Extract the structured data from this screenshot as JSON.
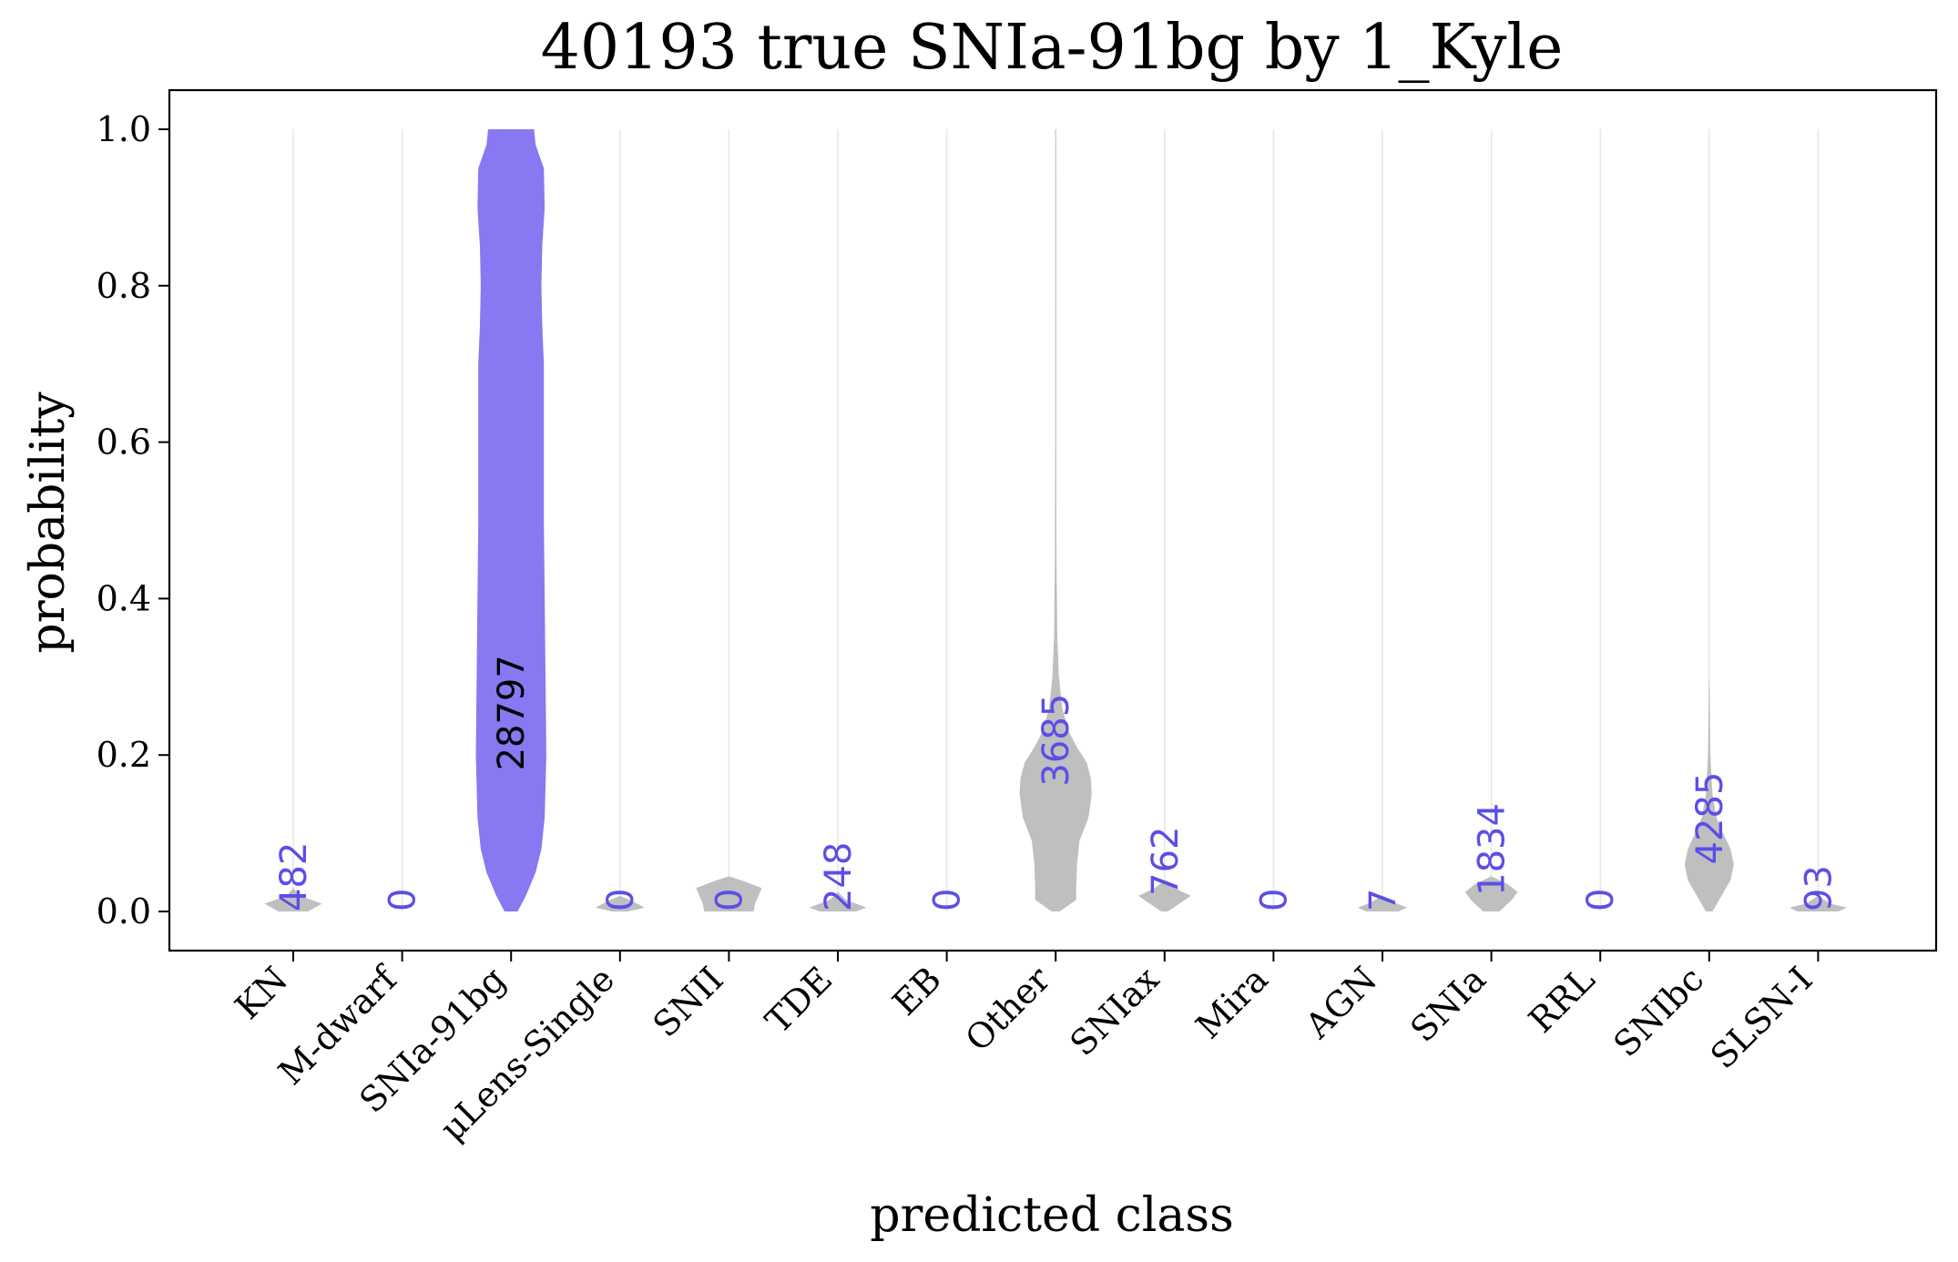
{
  "chart_data": {
    "type": "violin",
    "title": "40193 true SNIa-91bg by 1_Kyle",
    "xlabel": "predicted class",
    "ylabel": "probability",
    "ylim": [
      -0.05,
      1.05
    ],
    "yticks": [
      "0.0",
      "0.2",
      "0.4",
      "0.6",
      "0.8",
      "1.0"
    ],
    "grid": "vertical",
    "highlight_color": "#8878f2",
    "default_color": "#bfbfbf",
    "count_color_default": "#5b4ee8",
    "count_color_highlight": "#000000",
    "true_class": "SNIa-91bg",
    "categories": [
      {
        "name": "KN",
        "count": "482",
        "label_y": 0.0,
        "violin": [
          [
            0.0,
            0.18
          ],
          [
            0.01,
            0.35
          ],
          [
            0.02,
            0.08
          ],
          [
            0.03,
            0.0
          ]
        ]
      },
      {
        "name": "M-dwarf",
        "count": "0",
        "label_y": 0.0,
        "violin": []
      },
      {
        "name": "SNIa-91bg",
        "count": "28797",
        "label_y": 0.18,
        "violin": [
          [
            0.0,
            0.08
          ],
          [
            0.02,
            0.18
          ],
          [
            0.05,
            0.3
          ],
          [
            0.08,
            0.37
          ],
          [
            0.12,
            0.41
          ],
          [
            0.2,
            0.43
          ],
          [
            0.3,
            0.42
          ],
          [
            0.4,
            0.41
          ],
          [
            0.5,
            0.4
          ],
          [
            0.6,
            0.4
          ],
          [
            0.7,
            0.4
          ],
          [
            0.75,
            0.38
          ],
          [
            0.8,
            0.37
          ],
          [
            0.85,
            0.38
          ],
          [
            0.9,
            0.41
          ],
          [
            0.95,
            0.4
          ],
          [
            0.98,
            0.3
          ],
          [
            1.0,
            0.28
          ]
        ]
      },
      {
        "name": "μLens-Single",
        "count": "0",
        "label_y": 0.0,
        "violin": [
          [
            0.0,
            0.1
          ],
          [
            0.005,
            0.3
          ],
          [
            0.015,
            0.12
          ],
          [
            0.02,
            0.0
          ]
        ]
      },
      {
        "name": "SNII",
        "count": "0",
        "label_y": 0.0,
        "violin": [
          [
            0.0,
            0.3
          ],
          [
            0.01,
            0.32
          ],
          [
            0.02,
            0.36
          ],
          [
            0.03,
            0.4
          ],
          [
            0.04,
            0.15
          ],
          [
            0.045,
            0.0
          ]
        ]
      },
      {
        "name": "TDE",
        "count": "248",
        "label_y": 0.0,
        "violin": [
          [
            0.0,
            0.22
          ],
          [
            0.005,
            0.35
          ],
          [
            0.015,
            0.1
          ],
          [
            0.025,
            0.0
          ]
        ]
      },
      {
        "name": "EB",
        "count": "0",
        "label_y": 0.0,
        "violin": []
      },
      {
        "name": "Other",
        "count": "3685",
        "label_y": 0.16,
        "violin": [
          [
            0.0,
            0.05
          ],
          [
            0.015,
            0.25
          ],
          [
            0.03,
            0.25
          ],
          [
            0.06,
            0.26
          ],
          [
            0.09,
            0.29
          ],
          [
            0.12,
            0.4
          ],
          [
            0.15,
            0.44
          ],
          [
            0.17,
            0.43
          ],
          [
            0.19,
            0.38
          ],
          [
            0.21,
            0.26
          ],
          [
            0.23,
            0.16
          ],
          [
            0.26,
            0.08
          ],
          [
            0.3,
            0.04
          ],
          [
            0.35,
            0.02
          ],
          [
            0.45,
            0.01
          ],
          [
            0.6,
            0.006
          ],
          [
            1.0,
            0.004
          ]
        ]
      },
      {
        "name": "SNIax",
        "count": "762",
        "label_y": 0.02,
        "violin": [
          [
            0.0,
            0.04
          ],
          [
            0.01,
            0.18
          ],
          [
            0.02,
            0.32
          ],
          [
            0.03,
            0.12
          ],
          [
            0.04,
            0.0
          ]
        ]
      },
      {
        "name": "Mira",
        "count": "0",
        "label_y": 0.0,
        "violin": []
      },
      {
        "name": "AGN",
        "count": "7",
        "label_y": 0.0,
        "violin": [
          [
            0.0,
            0.2
          ],
          [
            0.005,
            0.3
          ],
          [
            0.01,
            0.18
          ],
          [
            0.02,
            0.0
          ]
        ]
      },
      {
        "name": "SNIa",
        "count": "1834",
        "label_y": 0.02,
        "violin": [
          [
            0.0,
            0.1
          ],
          [
            0.015,
            0.25
          ],
          [
            0.025,
            0.32
          ],
          [
            0.035,
            0.2
          ],
          [
            0.045,
            0.0
          ]
        ]
      },
      {
        "name": "RRL",
        "count": "0",
        "label_y": 0.0,
        "violin": []
      },
      {
        "name": "SNIbc",
        "count": "4285",
        "label_y": 0.06,
        "violin": [
          [
            0.0,
            0.04
          ],
          [
            0.02,
            0.15
          ],
          [
            0.04,
            0.26
          ],
          [
            0.06,
            0.3
          ],
          [
            0.08,
            0.26
          ],
          [
            0.1,
            0.17
          ],
          [
            0.12,
            0.09
          ],
          [
            0.15,
            0.04
          ],
          [
            0.2,
            0.015
          ],
          [
            0.28,
            0.006
          ],
          [
            0.3,
            0.0
          ]
        ]
      },
      {
        "name": "SLSN-I",
        "count": "93",
        "label_y": 0.0,
        "violin": [
          [
            0.0,
            0.25
          ],
          [
            0.005,
            0.35
          ],
          [
            0.01,
            0.15
          ],
          [
            0.02,
            0.0
          ]
        ]
      }
    ]
  }
}
